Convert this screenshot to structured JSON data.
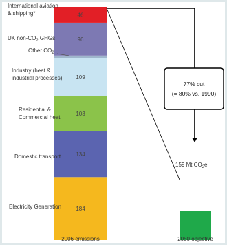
{
  "chart_data": {
    "type": "bar",
    "stacked": true,
    "categories": [
      "2006 emissions",
      "2050 objective"
    ],
    "segments": [
      {
        "name": "Electricity Generation",
        "value": 184,
        "value_label": "184",
        "color": "#f5b81e"
      },
      {
        "name": "Domestic transport",
        "value": 134,
        "value_label": "134",
        "color": "#5b64b0"
      },
      {
        "name": "Residential & Commercial heat",
        "value": 103,
        "value_label": "103",
        "color": "#8bc34a"
      },
      {
        "name": "Industry (heat & industrial processes)",
        "value": 109,
        "value_label": "109",
        "color": "#c8e4f2"
      },
      {
        "name": "Other CO2",
        "value": 8,
        "value_label": "",
        "color": "#9fb6cc"
      },
      {
        "name": "UK non-CO2 GHGs",
        "value": 96,
        "value_label": "96",
        "color": "#7d79b3"
      },
      {
        "name": "International aviation & shipping*",
        "value": 46,
        "value_label": "46",
        "color": "#e21f26"
      }
    ],
    "objective": {
      "value": 159,
      "label": "159 Mt CO2e",
      "color": "#1fa94a"
    },
    "annotation": {
      "line1": "77% cut",
      "line2": "(= 80% vs. 1990)"
    }
  },
  "labels": {
    "aviation_line1": "International aviation",
    "aviation_line2": "& shipping*",
    "nonco2_line1": "UK non-CO",
    "nonco2_sub": "2",
    "nonco2_line1_end": " GHGs",
    "otherco2_line1": "Other CO",
    "otherco2_sub": "2",
    "industry_line1": "Industry (heat &",
    "industry_line2": "industrial processes)",
    "residential_line1": "Residential &",
    "residential_line2": "Commercial heat",
    "transport": "Domestic transport",
    "electricity": "Electricity Generation",
    "objective_main": "159 Mt CO",
    "objective_sub": "2",
    "objective_end": "e",
    "x_2006": "2006 emissions",
    "x_2050": "2050 objective"
  }
}
